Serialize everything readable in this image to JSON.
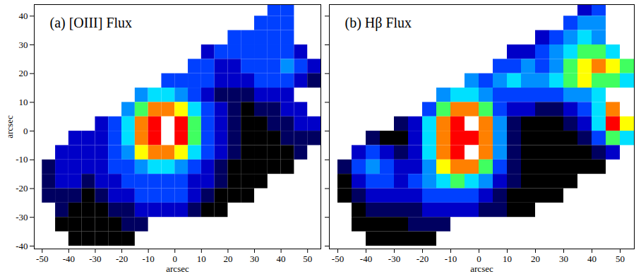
{
  "chart_data": [
    {
      "type": "heatmap",
      "title": "(a) [OIII] Flux",
      "x_label": "arcsec",
      "y_label": "arcsec",
      "xlim": [
        -53,
        55
      ],
      "ylim": [
        -41,
        44
      ],
      "xticks": [
        -50,
        -40,
        -30,
        -20,
        -10,
        0,
        10,
        20,
        30,
        40,
        50
      ],
      "yticks": [
        -40,
        -30,
        -20,
        -10,
        0,
        10,
        20,
        30,
        40
      ],
      "zlim": [
        0,
        10
      ],
      "x_edges": [
        -50,
        -45,
        -40,
        -35,
        -30,
        -25,
        -20,
        -15,
        -10,
        -5,
        0,
        5,
        10,
        15,
        20,
        25,
        30,
        35,
        40,
        45,
        50,
        55
      ],
      "y_edges": [
        45,
        40,
        35,
        30,
        25,
        20,
        15,
        10,
        5,
        0,
        -5,
        -10,
        -15,
        -20,
        -25,
        -30,
        -35,
        -40
      ],
      "cells": [
        [
          null,
          null,
          null,
          null,
          null,
          null,
          null,
          null,
          null,
          null,
          null,
          null,
          null,
          null,
          null,
          null,
          null,
          3,
          3,
          null,
          null
        ],
        [
          null,
          null,
          null,
          null,
          null,
          null,
          null,
          null,
          null,
          null,
          null,
          null,
          null,
          null,
          null,
          null,
          3,
          3,
          3,
          null,
          null
        ],
        [
          null,
          null,
          null,
          null,
          null,
          null,
          null,
          null,
          null,
          null,
          null,
          null,
          null,
          null,
          3,
          3,
          3,
          3,
          3,
          null,
          null
        ],
        [
          null,
          null,
          null,
          null,
          null,
          null,
          null,
          null,
          null,
          null,
          null,
          null,
          2,
          3,
          3,
          3,
          3,
          3,
          3,
          2,
          null
        ],
        [
          null,
          null,
          null,
          null,
          null,
          null,
          null,
          null,
          null,
          null,
          null,
          3,
          3,
          2,
          2,
          3,
          3,
          3,
          4,
          3,
          2
        ],
        [
          null,
          null,
          null,
          null,
          null,
          null,
          null,
          null,
          null,
          3,
          3,
          3,
          3,
          2,
          2,
          2,
          3,
          3,
          3,
          2,
          1
        ],
        [
          null,
          null,
          null,
          null,
          null,
          null,
          null,
          4,
          5,
          5,
          4,
          3,
          2,
          1,
          1,
          1,
          2,
          2,
          2,
          null,
          null
        ],
        [
          null,
          null,
          null,
          null,
          null,
          null,
          4,
          6,
          8,
          8,
          7,
          5,
          3,
          2,
          1,
          0,
          1,
          1,
          2,
          2,
          null
        ],
        [
          null,
          null,
          null,
          null,
          2,
          3,
          5,
          8,
          9,
          10,
          9,
          6,
          3,
          2,
          1,
          0,
          0,
          1,
          1,
          2,
          2
        ],
        [
          null,
          null,
          2,
          2,
          2,
          3,
          5,
          8,
          9,
          10,
          9,
          6,
          3,
          2,
          1,
          0,
          0,
          0,
          1,
          1,
          1
        ],
        [
          null,
          2,
          2,
          2,
          2,
          3,
          4,
          7,
          8,
          8,
          7,
          5,
          3,
          2,
          1,
          0,
          0,
          0,
          0,
          1,
          null
        ],
        [
          1,
          2,
          2,
          2,
          2,
          3,
          3,
          4,
          5,
          5,
          4,
          3,
          2,
          1,
          0,
          0,
          0,
          0,
          0,
          null,
          null
        ],
        [
          1,
          2,
          2,
          1,
          2,
          2,
          3,
          3,
          3,
          3,
          3,
          2,
          2,
          1,
          0,
          0,
          0,
          null,
          null,
          null,
          null
        ],
        [
          1,
          1,
          1,
          0,
          1,
          2,
          2,
          3,
          3,
          3,
          3,
          2,
          1,
          0,
          0,
          0,
          null,
          null,
          null,
          null,
          null
        ],
        [
          null,
          1,
          0,
          0,
          0,
          1,
          1,
          2,
          2,
          2,
          2,
          1,
          0,
          0,
          null,
          null,
          null,
          null,
          null,
          null,
          null
        ],
        [
          null,
          0,
          0,
          0,
          0,
          0,
          1,
          1,
          null,
          null,
          null,
          null,
          null,
          null,
          null,
          null,
          null,
          null,
          null,
          null,
          null
        ],
        [
          null,
          null,
          0,
          0,
          0,
          0,
          0,
          null,
          null,
          null,
          null,
          null,
          null,
          null,
          null,
          null,
          null,
          null,
          null,
          null,
          null
        ]
      ]
    },
    {
      "type": "heatmap",
      "title": "(b) Hβ Flux",
      "x_label": "arcsec",
      "tick_labels": "x",
      "xlim": [
        -53,
        55
      ],
      "ylim": [
        -41,
        44
      ],
      "xticks": [
        -50,
        -40,
        -30,
        -20,
        -10,
        0,
        10,
        20,
        30,
        40,
        50
      ],
      "yticks": [
        -40,
        -30,
        -20,
        -10,
        0,
        10,
        20,
        30,
        40
      ],
      "zlim": [
        0,
        10
      ],
      "x_edges": [
        -50,
        -45,
        -40,
        -35,
        -30,
        -25,
        -20,
        -15,
        -10,
        -5,
        0,
        5,
        10,
        15,
        20,
        25,
        30,
        35,
        40,
        45,
        50,
        55
      ],
      "y_edges": [
        45,
        40,
        35,
        30,
        25,
        20,
        15,
        10,
        5,
        0,
        -5,
        -10,
        -15,
        -20,
        -25,
        -30,
        -35,
        -40
      ],
      "cells": [
        [
          null,
          null,
          null,
          null,
          null,
          null,
          null,
          null,
          null,
          null,
          null,
          null,
          null,
          null,
          null,
          null,
          null,
          2,
          3,
          null,
          null
        ],
        [
          null,
          null,
          null,
          null,
          null,
          null,
          null,
          null,
          null,
          null,
          null,
          null,
          null,
          null,
          null,
          null,
          3,
          4,
          4,
          null,
          null
        ],
        [
          null,
          null,
          null,
          null,
          null,
          null,
          null,
          null,
          null,
          null,
          null,
          null,
          null,
          null,
          2,
          3,
          4,
          5,
          4,
          null,
          null
        ],
        [
          null,
          null,
          null,
          null,
          null,
          null,
          null,
          null,
          null,
          null,
          null,
          null,
          2,
          2,
          3,
          4,
          5,
          6,
          6,
          5,
          null
        ],
        [
          null,
          null,
          null,
          null,
          null,
          null,
          null,
          null,
          null,
          null,
          null,
          3,
          3,
          4,
          3,
          4,
          6,
          7,
          8,
          7,
          6
        ],
        [
          null,
          null,
          null,
          null,
          null,
          null,
          null,
          null,
          null,
          4,
          3,
          4,
          5,
          4,
          4,
          5,
          6,
          7,
          6,
          6,
          5
        ],
        [
          null,
          null,
          null,
          null,
          null,
          null,
          null,
          4,
          5,
          5,
          4,
          3,
          3,
          3,
          3,
          3,
          4,
          4,
          5,
          null,
          null
        ],
        [
          null,
          null,
          null,
          null,
          null,
          null,
          3,
          6,
          8,
          8,
          6,
          3,
          2,
          2,
          1,
          1,
          2,
          3,
          5,
          8,
          null
        ],
        [
          null,
          null,
          null,
          null,
          1,
          2,
          5,
          8,
          9,
          10,
          8,
          4,
          1,
          0,
          0,
          0,
          1,
          2,
          5,
          9,
          7
        ],
        [
          null,
          null,
          1,
          0,
          0,
          2,
          5,
          8,
          9,
          9,
          8,
          4,
          1,
          0,
          0,
          0,
          0,
          1,
          3,
          6,
          5
        ],
        [
          null,
          2,
          3,
          2,
          1,
          2,
          5,
          8,
          9,
          10,
          8,
          4,
          1,
          0,
          0,
          0,
          0,
          0,
          1,
          2,
          null
        ],
        [
          1,
          3,
          4,
          3,
          2,
          2,
          4,
          7,
          8,
          8,
          6,
          3,
          1,
          0,
          0,
          0,
          0,
          0,
          0,
          null,
          null
        ],
        [
          0,
          2,
          3,
          3,
          2,
          3,
          4,
          5,
          6,
          5,
          4,
          2,
          1,
          0,
          0,
          0,
          0,
          null,
          null,
          null,
          null
        ],
        [
          0,
          1,
          2,
          2,
          2,
          2,
          3,
          3,
          3,
          3,
          2,
          1,
          0,
          0,
          0,
          0,
          null,
          null,
          null,
          null,
          null
        ],
        [
          null,
          0,
          1,
          1,
          1,
          1,
          2,
          2,
          2,
          2,
          1,
          1,
          0,
          0,
          null,
          null,
          null,
          null,
          null,
          null,
          null
        ],
        [
          null,
          0,
          0,
          0,
          0,
          1,
          1,
          1,
          null,
          null,
          null,
          null,
          null,
          null,
          null,
          null,
          null,
          null,
          null,
          null,
          null
        ],
        [
          null,
          null,
          0,
          0,
          0,
          0,
          0,
          null,
          null,
          null,
          null,
          null,
          null,
          null,
          null,
          null,
          null,
          null,
          null,
          null,
          null
        ]
      ]
    }
  ]
}
